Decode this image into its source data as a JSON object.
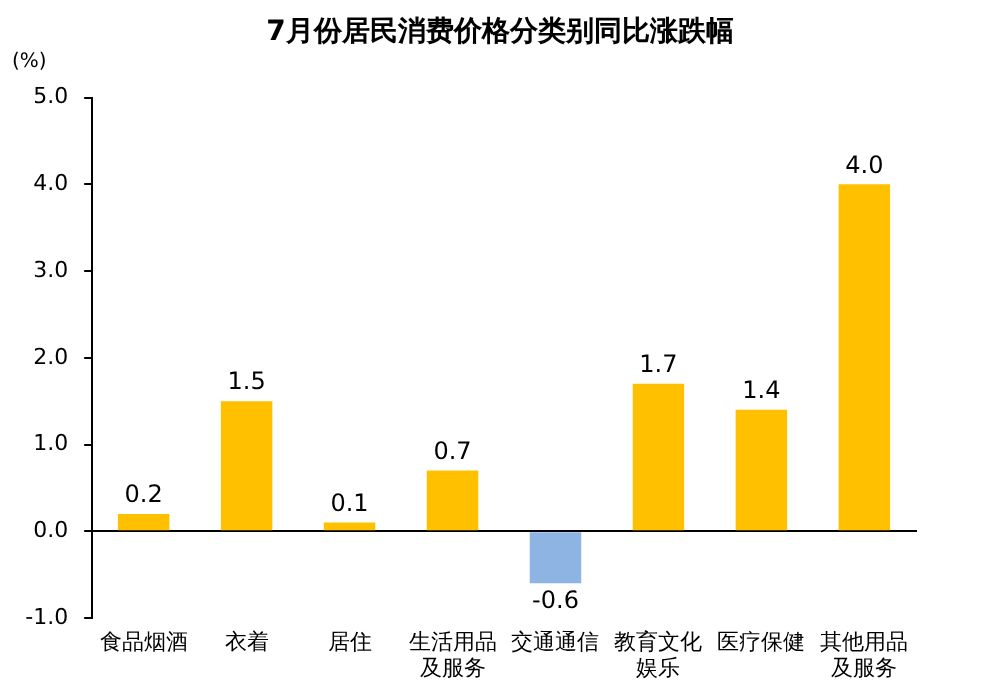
{
  "chart_data": {
    "type": "bar",
    "title": "7月份居民消费价格分类别同比涨跌幅",
    "ylabel": "(%)",
    "categories": [
      "食品烟酒",
      "衣着",
      "居住",
      "生活用品及服务",
      "交通通信",
      "教育文化娱乐",
      "医疗保健",
      "其他用品及服务"
    ],
    "values": [
      0.2,
      1.5,
      0.1,
      0.7,
      -0.6,
      1.7,
      1.4,
      4.0
    ],
    "colors": [
      "#ffc000",
      "#ffc000",
      "#ffc000",
      "#ffc000",
      "#8db4e2",
      "#ffc000",
      "#ffc000",
      "#ffc000"
    ],
    "value_labels": [
      "0.2",
      "1.5",
      "0.1",
      "0.7",
      "-0.6",
      "1.7",
      "1.4",
      "4.0"
    ],
    "ylim": [
      -1,
      5
    ],
    "yticks": [
      {
        "value": -1,
        "label": "-1.0"
      },
      {
        "value": 0,
        "label": "0.0"
      },
      {
        "value": 1,
        "label": "1.0"
      },
      {
        "value": 2,
        "label": "2.0"
      },
      {
        "value": 3,
        "label": "3.0"
      },
      {
        "value": 4,
        "label": "4.0"
      },
      {
        "value": 5,
        "label": "5.0"
      }
    ]
  }
}
